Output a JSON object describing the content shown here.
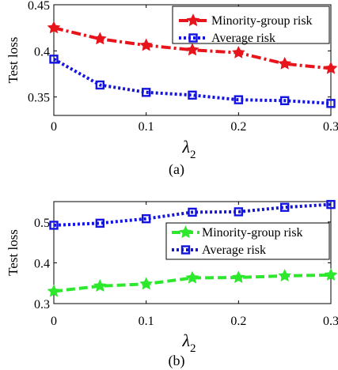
{
  "chart_data": [
    {
      "type": "line",
      "panel": "(a)",
      "x": [
        0,
        0.05,
        0.1,
        0.15,
        0.2,
        0.25,
        0.3
      ],
      "xlim": [
        0,
        0.3
      ],
      "ylim": [
        0.33,
        0.45
      ],
      "xticks": [
        "0",
        "0.1",
        "0.2",
        "0.3"
      ],
      "yticks": [
        "0.35",
        "0.4",
        "0.45"
      ],
      "xlabel_base": "λ",
      "xlabel_sub": "2",
      "ylabel": "Test loss",
      "legend_position": "top-right",
      "series": [
        {
          "name": "Minority-group risk",
          "color": "#e8141c",
          "marker": "star",
          "dash": "dashdot",
          "values": [
            0.425,
            0.413,
            0.406,
            0.401,
            0.398,
            0.386,
            0.381
          ]
        },
        {
          "name": "Average risk",
          "color": "#1414e0",
          "marker": "square",
          "dash": "dotted",
          "values": [
            0.391,
            0.363,
            0.355,
            0.352,
            0.347,
            0.346,
            0.343
          ]
        }
      ]
    },
    {
      "type": "line",
      "panel": "(b)",
      "x": [
        0,
        0.05,
        0.1,
        0.15,
        0.2,
        0.25,
        0.3
      ],
      "xlim": [
        0,
        0.3
      ],
      "ylim": [
        0.3,
        0.55
      ],
      "xticks": [
        "0",
        "0.1",
        "0.2",
        "0.3"
      ],
      "yticks": [
        "0.3",
        "0.4",
        "0.5"
      ],
      "xlabel_base": "λ",
      "xlabel_sub": "2",
      "ylabel": "Test loss",
      "legend_position": "center-right",
      "series": [
        {
          "name": "Minority-group risk",
          "color": "#2ee82e",
          "marker": "star",
          "dash": "dashed",
          "values": [
            0.33,
            0.343,
            0.348,
            0.363,
            0.364,
            0.368,
            0.37
          ]
        },
        {
          "name": "Average risk",
          "color": "#1414e0",
          "marker": "square",
          "dash": "dotted",
          "values": [
            0.492,
            0.497,
            0.508,
            0.524,
            0.525,
            0.536,
            0.543
          ]
        }
      ]
    }
  ]
}
